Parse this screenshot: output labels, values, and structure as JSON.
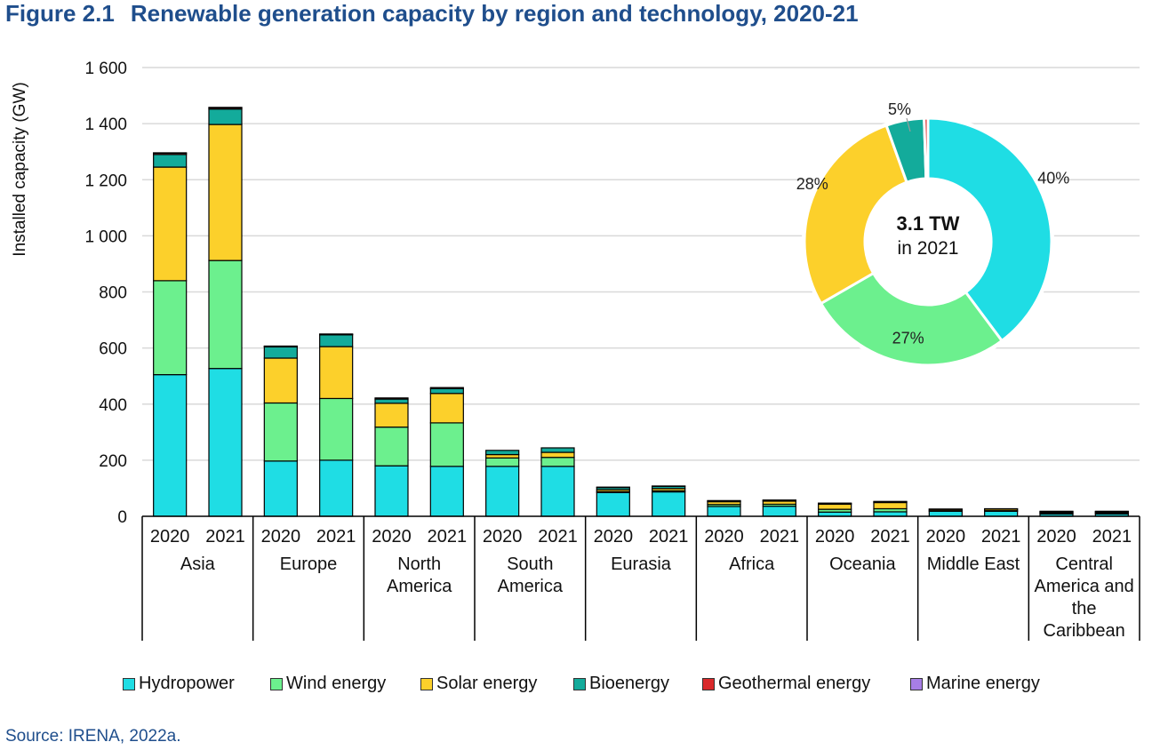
{
  "header": {
    "figure_number": "Figure 2.1",
    "title": "Renewable generation capacity by region and technology, 2020-21"
  },
  "source": "Source: IRENA, 2022a.",
  "colors": {
    "Hydropower": "#1fdde4",
    "Wind energy": "#6cf08e",
    "Solar energy": "#fcd02b",
    "Bioenergy": "#13ab9b",
    "Geothermal energy": "#d9292b",
    "Marine energy": "#a77ee6"
  },
  "chart_data": [
    {
      "type": "bar",
      "stacked": true,
      "ylabel": "Installed capacity (GW)",
      "ylim": [
        0,
        1600
      ],
      "yticks": [
        0,
        200,
        400,
        600,
        800,
        1000,
        1200,
        1400,
        1600
      ],
      "ytick_labels": [
        "0",
        "200",
        "400",
        "600",
        "800",
        "1 000",
        "1 200",
        "1 400",
        "1 600"
      ],
      "grid": true,
      "legend_position": "bottom",
      "groups": [
        "Asia",
        "Europe",
        "North America",
        "South America",
        "Eurasia",
        "Africa",
        "Oceania",
        "Middle East",
        "Central America and the Caribbean"
      ],
      "years": [
        "2020",
        "2021"
      ],
      "series": [
        {
          "name": "Hydropower",
          "values": [
            [
              505,
              527
            ],
            [
              197,
              200
            ],
            [
              180,
              178
            ],
            [
              178,
              178
            ],
            [
              85,
              87
            ],
            [
              35,
              36
            ],
            [
              15,
              16
            ],
            [
              18,
              18
            ],
            [
              8,
              8
            ]
          ]
        },
        {
          "name": "Wind energy",
          "values": [
            [
              335,
              385
            ],
            [
              207,
              220
            ],
            [
              138,
              155
            ],
            [
              30,
              32
            ],
            [
              3,
              4
            ],
            [
              7,
              7
            ],
            [
              10,
              11
            ],
            [
              2,
              2
            ],
            [
              3,
              3
            ]
          ]
        },
        {
          "name": "Solar energy",
          "values": [
            [
              405,
              485
            ],
            [
              160,
              185
            ],
            [
              85,
              105
            ],
            [
              12,
              18
            ],
            [
              7,
              8
            ],
            [
              10,
              11
            ],
            [
              18,
              22
            ],
            [
              5,
              6
            ],
            [
              3,
              3
            ]
          ]
        },
        {
          "name": "Bioenergy",
          "values": [
            [
              45,
              55
            ],
            [
              40,
              42
            ],
            [
              15,
              17
            ],
            [
              15,
              16
            ],
            [
              8,
              8
            ],
            [
              3,
              3
            ],
            [
              3,
              3
            ],
            [
              1,
              1
            ],
            [
              3,
              3
            ]
          ]
        },
        {
          "name": "Geothermal energy",
          "values": [
            [
              5,
              5
            ],
            [
              2,
              2
            ],
            [
              4,
              4
            ],
            [
              0,
              0
            ],
            [
              1,
              1
            ],
            [
              1,
              1
            ],
            [
              1,
              1
            ],
            [
              0,
              0
            ],
            [
              1,
              1
            ]
          ]
        },
        {
          "name": "Marine energy",
          "values": [
            [
              1,
              1
            ],
            [
              1,
              1
            ],
            [
              0,
              0
            ],
            [
              0,
              0
            ],
            [
              0,
              0
            ],
            [
              0,
              0
            ],
            [
              0,
              0
            ],
            [
              0,
              0
            ],
            [
              0,
              0
            ]
          ]
        }
      ]
    },
    {
      "type": "pie",
      "donut": true,
      "center_label": "3.1 TW",
      "center_sublabel": "in 2021",
      "slices": [
        {
          "name": "Hydropower",
          "value": 40,
          "label": "40%"
        },
        {
          "name": "Wind energy",
          "value": 27,
          "label": "27%"
        },
        {
          "name": "Solar energy",
          "value": 28,
          "label": "28%"
        },
        {
          "name": "Bioenergy",
          "value": 5,
          "label": "5%"
        },
        {
          "name": "Geothermal energy",
          "value": 0.5,
          "label": ""
        }
      ]
    }
  ]
}
